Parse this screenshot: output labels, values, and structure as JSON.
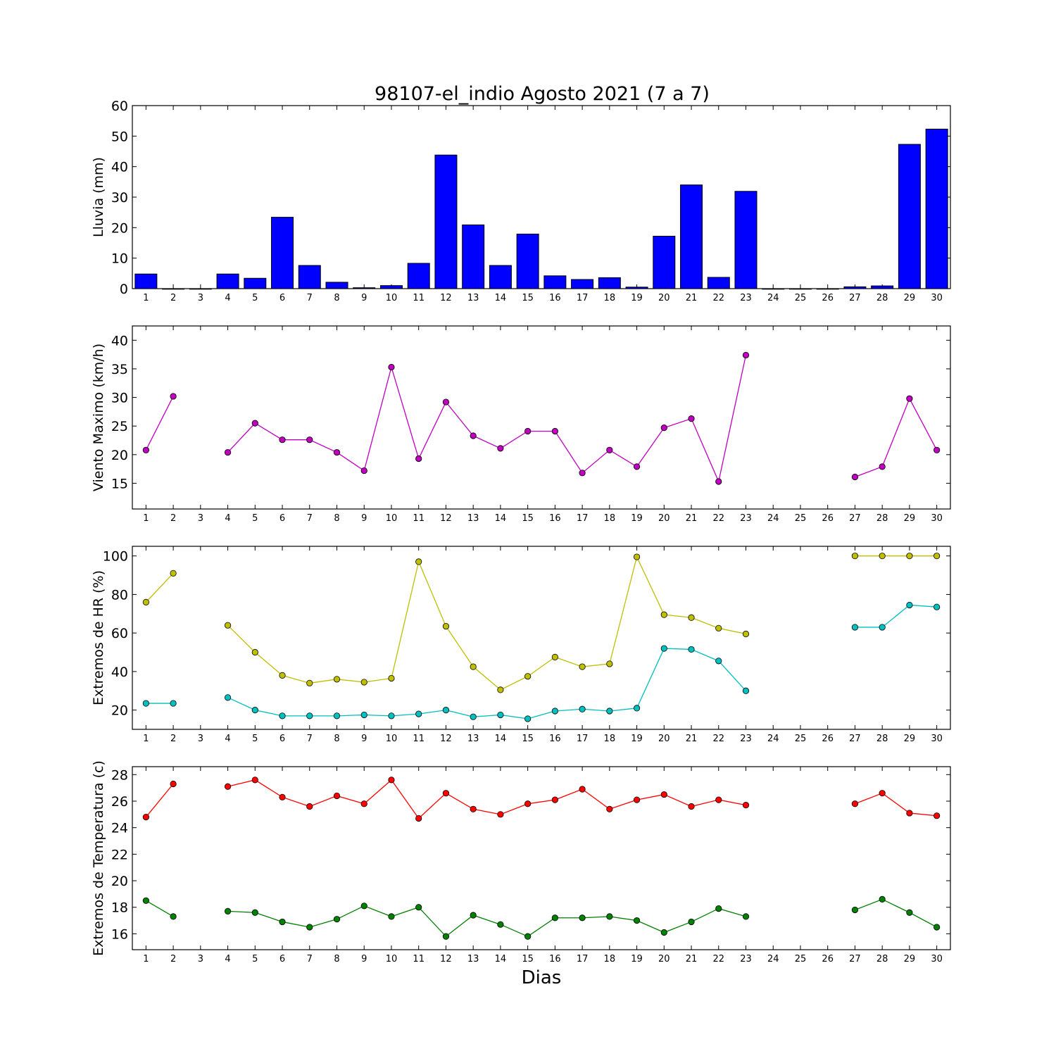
{
  "title": "98107-el_indio Agosto 2021  (7 a 7)",
  "xlabel": "Dias",
  "colors": {
    "rain": "#0000ff",
    "wind": "#bf00bf",
    "hr_max": "#bfbf00",
    "hr_min": "#00bfbf",
    "t_max": "#ff0000",
    "t_min": "#008000"
  },
  "chart_data": [
    {
      "type": "bar",
      "ylabel": "Lluvia (mm)",
      "ylim": [
        0,
        60
      ],
      "yticks": [
        0,
        10,
        20,
        30,
        40,
        50,
        60
      ],
      "categories": [
        "1",
        "2",
        "3",
        "4",
        "5",
        "6",
        "7",
        "8",
        "9",
        "10",
        "11",
        "12",
        "13",
        "14",
        "15",
        "16",
        "17",
        "18",
        "19",
        "20",
        "21",
        "22",
        "23",
        "24",
        "25",
        "26",
        "27",
        "28",
        "29",
        "30"
      ],
      "series": [
        {
          "color_key": "rain",
          "values": [
            4.8,
            0,
            0,
            4.8,
            3.4,
            23.4,
            7.6,
            2.1,
            0.3,
            1.0,
            8.3,
            43.8,
            20.9,
            7.6,
            17.9,
            4.2,
            3.0,
            3.6,
            0.5,
            17.2,
            34.0,
            3.7,
            31.9,
            0,
            0,
            0,
            0.6,
            0.9,
            47.3,
            52.3
          ]
        }
      ]
    },
    {
      "type": "line",
      "ylabel": "Viento Maximo (km/h)",
      "ylim": [
        10.5,
        42.5
      ],
      "yticks": [
        15,
        20,
        25,
        30,
        35,
        40
      ],
      "categories": [
        "1",
        "2",
        "3",
        "4",
        "5",
        "6",
        "7",
        "8",
        "9",
        "10",
        "11",
        "12",
        "13",
        "14",
        "15",
        "16",
        "17",
        "18",
        "19",
        "20",
        "21",
        "22",
        "23",
        "24",
        "25",
        "26",
        "27",
        "28",
        "29",
        "30"
      ],
      "series": [
        {
          "color_key": "wind",
          "values": [
            20.8,
            30.2,
            null,
            20.4,
            25.5,
            22.6,
            22.6,
            20.4,
            17.2,
            35.3,
            19.3,
            29.2,
            23.3,
            21.1,
            24.1,
            24.1,
            16.8,
            20.8,
            17.9,
            24.7,
            26.3,
            15.3,
            37.4,
            null,
            null,
            null,
            16.1,
            17.9,
            29.8,
            20.8
          ]
        }
      ]
    },
    {
      "type": "line",
      "ylabel": "Extremos de HR (%)",
      "ylim": [
        10,
        105
      ],
      "yticks": [
        20,
        40,
        60,
        80,
        100
      ],
      "categories": [
        "1",
        "2",
        "3",
        "4",
        "5",
        "6",
        "7",
        "8",
        "9",
        "10",
        "11",
        "12",
        "13",
        "14",
        "15",
        "16",
        "17",
        "18",
        "19",
        "20",
        "21",
        "22",
        "23",
        "24",
        "25",
        "26",
        "27",
        "28",
        "29",
        "30"
      ],
      "series": [
        {
          "color_key": "hr_max",
          "values": [
            76,
            91,
            null,
            64,
            50,
            38,
            34,
            36,
            34.5,
            36.5,
            97,
            63.5,
            42.5,
            30.5,
            37.5,
            47.5,
            42.5,
            44,
            99.5,
            69.5,
            68,
            62.5,
            59.5,
            null,
            null,
            null,
            100,
            100,
            100,
            100
          ]
        },
        {
          "color_key": "hr_min",
          "values": [
            23.5,
            23.5,
            null,
            26.5,
            20,
            17,
            17,
            17,
            17.5,
            17,
            18,
            20,
            16.5,
            17.5,
            15.5,
            19.5,
            20.5,
            19.5,
            21,
            52,
            51.5,
            45.5,
            30,
            null,
            null,
            null,
            63,
            63,
            74.5,
            73.5
          ]
        }
      ]
    },
    {
      "type": "line",
      "ylabel": "Extremos de Temperatura (c)",
      "ylim": [
        14.8,
        28.6
      ],
      "yticks": [
        16,
        18,
        20,
        22,
        24,
        26,
        28
      ],
      "categories": [
        "1",
        "2",
        "3",
        "4",
        "5",
        "6",
        "7",
        "8",
        "9",
        "10",
        "11",
        "12",
        "13",
        "14",
        "15",
        "16",
        "17",
        "18",
        "19",
        "20",
        "21",
        "22",
        "23",
        "24",
        "25",
        "26",
        "27",
        "28",
        "29",
        "30"
      ],
      "series": [
        {
          "color_key": "t_max",
          "values": [
            24.8,
            27.3,
            null,
            27.1,
            27.6,
            26.3,
            25.6,
            26.4,
            25.8,
            27.6,
            24.7,
            26.6,
            25.4,
            25.0,
            25.8,
            26.1,
            26.9,
            25.4,
            26.1,
            26.5,
            25.6,
            26.1,
            25.7,
            null,
            null,
            null,
            25.8,
            26.6,
            25.1,
            24.9
          ]
        },
        {
          "color_key": "t_min",
          "values": [
            18.5,
            17.3,
            null,
            17.7,
            17.6,
            16.9,
            16.5,
            17.1,
            18.1,
            17.3,
            18.0,
            15.8,
            17.4,
            16.7,
            15.8,
            17.2,
            17.2,
            17.3,
            17.0,
            16.1,
            16.9,
            17.9,
            17.3,
            null,
            null,
            null,
            17.8,
            18.6,
            17.6,
            16.5
          ]
        }
      ]
    }
  ]
}
